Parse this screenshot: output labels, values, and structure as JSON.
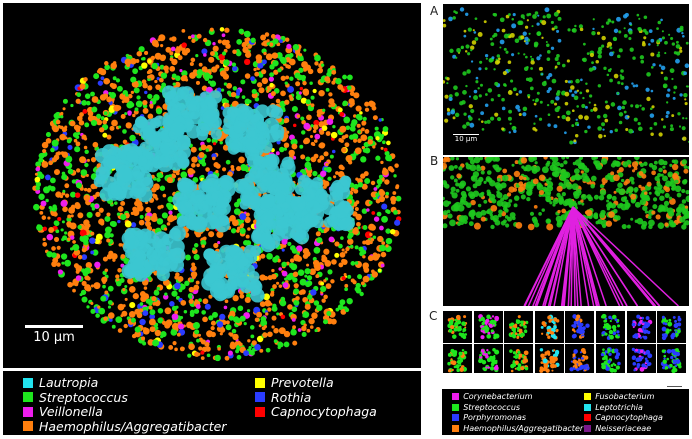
{
  "main_panel": {
    "scale_label": "10 µm",
    "legend": [
      {
        "label": "Lautropia",
        "color": "#22e3ee"
      },
      {
        "label": "Streptococcus",
        "color": "#1ee61e"
      },
      {
        "label": "Veillonella",
        "color": "#ee1eee"
      },
      {
        "label": "Haemophilus/Aggregatibacter",
        "color": "#ff7f0e"
      },
      {
        "label": "Prevotella",
        "color": "#ffff00"
      },
      {
        "label": "Rothia",
        "color": "#2a3cff"
      },
      {
        "label": "Capnocytophaga",
        "color": "#ff0000"
      }
    ]
  },
  "panel_a": {
    "label": "A",
    "scale_label": "10 µm"
  },
  "panel_b": {
    "label": "B"
  },
  "panel_c": {
    "label": "C",
    "legend": [
      {
        "label": "Corynebacterium",
        "color": "#ee1eee"
      },
      {
        "label": "Streptococcus",
        "color": "#1ee61e"
      },
      {
        "label": "Porphyromonas",
        "color": "#2a3cff"
      },
      {
        "label": "Haemophilus/Aggregatibacter",
        "color": "#ff7f0e"
      },
      {
        "label": "Fusobacterium",
        "color": "#ffff00"
      },
      {
        "label": "Leptotrichia",
        "color": "#22e3ee"
      },
      {
        "label": "Capnocytophaga",
        "color": "#ff0000"
      },
      {
        "label": "Neisseriaceae",
        "color": "#7a1a8a"
      }
    ]
  }
}
